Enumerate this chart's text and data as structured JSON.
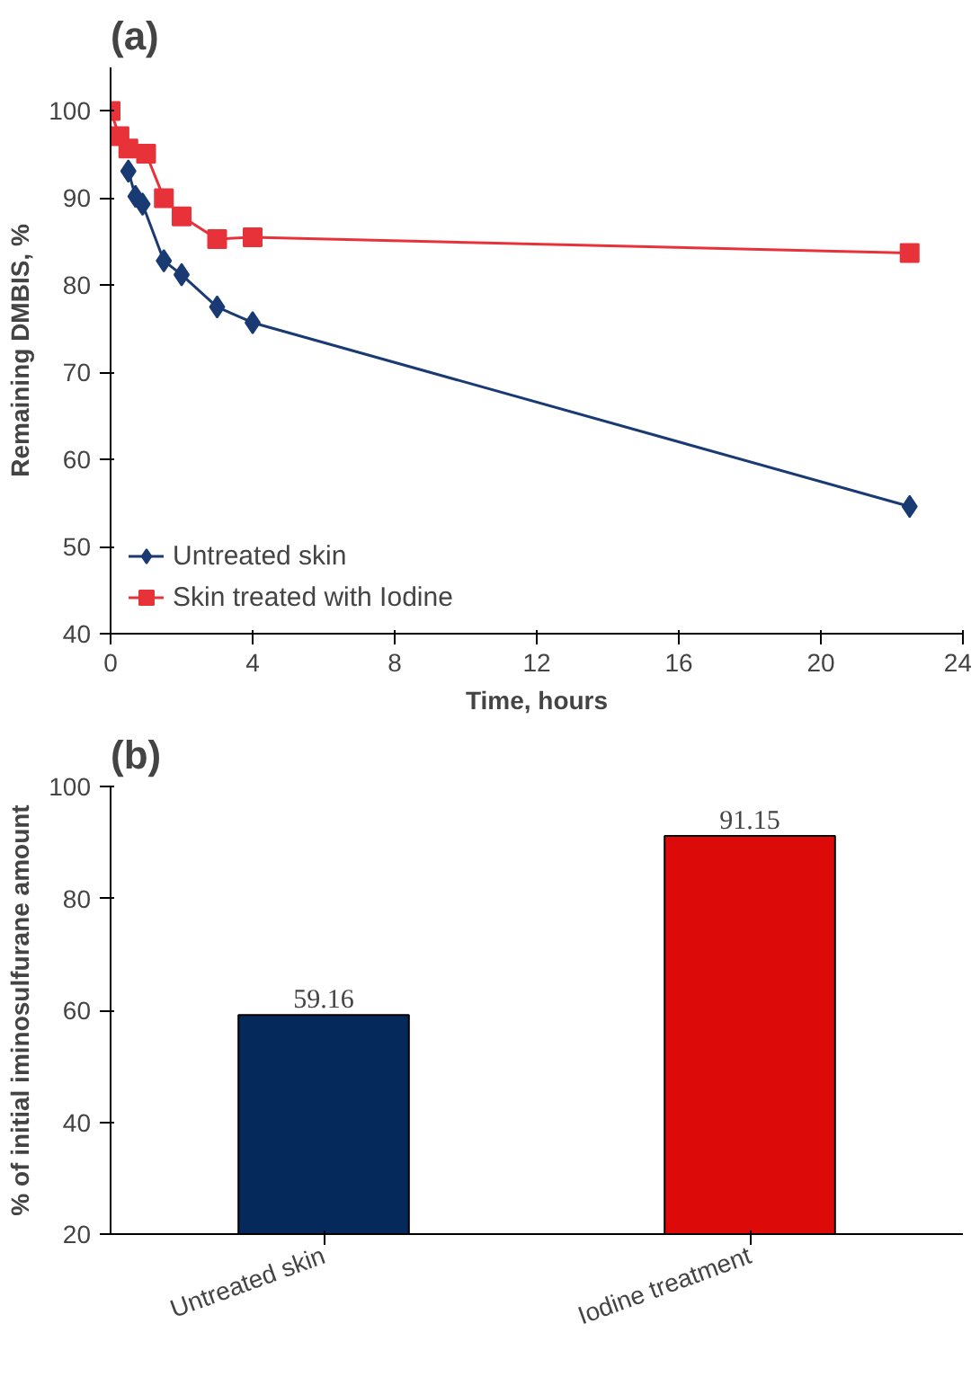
{
  "chart_data": [
    {
      "type": "line",
      "title": "(a)",
      "xlabel": "Time, hours",
      "ylabel": "Remaining DMBIS, %",
      "xlim": [
        0,
        24
      ],
      "xticks": [
        0,
        4,
        8,
        12,
        16,
        20,
        24
      ],
      "ylim": [
        40,
        105
      ],
      "yticks": [
        40,
        50,
        60,
        70,
        80,
        90,
        100
      ],
      "legend": "bottom left",
      "grid": false,
      "series": [
        {
          "name": "Untreated skin",
          "color": "#1a3a73",
          "marker": "diamond",
          "x": [
            0.5,
            0.7,
            0.9,
            1.5,
            2,
            3,
            4,
            22.5
          ],
          "values": [
            93.1,
            90.2,
            89.3,
            82.8,
            81.2,
            77.5,
            75.7,
            54.6
          ]
        },
        {
          "name": "Skin treated with Iodine",
          "color": "#e8323a",
          "marker": "square",
          "x": [
            0,
            0.25,
            0.5,
            1,
            1.5,
            2,
            3,
            4,
            22.5
          ],
          "values": [
            100,
            97.1,
            95.7,
            95.1,
            90,
            87.9,
            85.3,
            85.5,
            83.7
          ]
        }
      ]
    },
    {
      "type": "bar",
      "title": "(b)",
      "ylabel": "% of initial iminosulfurane amount",
      "categories": [
        "Untreated skin",
        "Iodine treatment"
      ],
      "values": [
        59.16,
        91.15
      ],
      "colors": [
        "#06295c",
        "#dd0a0a"
      ],
      "ylim": [
        20,
        100
      ],
      "yticks": [
        20,
        40,
        60,
        80,
        100
      ],
      "data_labels": true,
      "grid": false
    }
  ]
}
